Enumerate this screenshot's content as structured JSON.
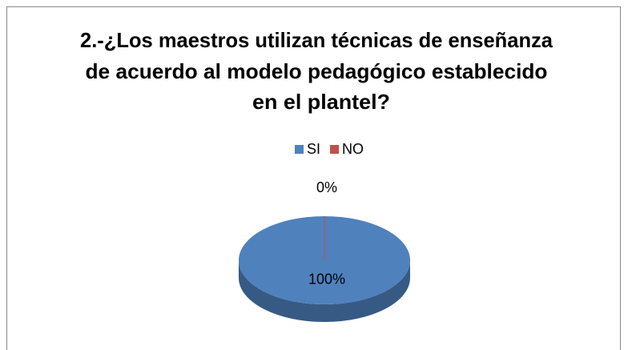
{
  "chart_data": {
    "type": "pie",
    "title": [
      "2.-¿Los maestros utilizan técnicas de enseñanza",
      "de acuerdo al modelo pedagógico establecido",
      "en el plantel?"
    ],
    "categories": [
      "SI",
      "NO"
    ],
    "values": [
      100,
      0
    ],
    "value_labels": [
      "100%",
      "0%"
    ],
    "colors": [
      "#4F81BD",
      "#C0504D"
    ],
    "legend": "top"
  }
}
